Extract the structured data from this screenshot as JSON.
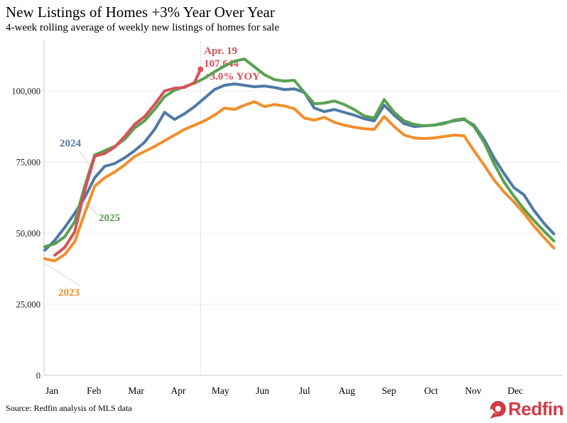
{
  "header": {
    "title": "New Listings of Homes +3% Year Over Year",
    "subtitle": "4-week rolling average of weekly new listings of homes for sale"
  },
  "annotation": {
    "date": "Apr. 19",
    "value": "107,644",
    "yoy": "+3.0% YOY"
  },
  "footer": {
    "source": "Source: Redfin analysis of MLS data",
    "logo_text": "Redfin",
    "logo_color": "#d13b45"
  },
  "chart_data": {
    "type": "line",
    "title": "New Listings of Homes +3% Year Over Year",
    "subtitle": "4-week rolling average of weekly new listings of homes for sale",
    "xlabel": "",
    "ylabel": "",
    "ylim": [
      0,
      115000
    ],
    "grid": "horizontal",
    "x_ticks": [
      "Jan",
      "Feb",
      "Mar",
      "Apr",
      "May",
      "Jun",
      "Jul",
      "Aug",
      "Sep",
      "Oct",
      "Nov",
      "Dec"
    ],
    "y_ticks": [
      {
        "value": 0,
        "label": "0"
      },
      {
        "value": 25000,
        "label": "25,000"
      },
      {
        "value": 50000,
        "label": "50,000"
      },
      {
        "value": 75000,
        "label": "75,000"
      },
      {
        "value": 100000,
        "label": "100,000"
      }
    ],
    "series": [
      {
        "name": "2023",
        "color": "#f28e2b",
        "start_week": 1,
        "values": [
          41000,
          40250,
          42500,
          47000,
          57000,
          66500,
          69500,
          71500,
          74000,
          77000,
          78750,
          80500,
          82500,
          84500,
          86500,
          88000,
          89500,
          91500,
          94000,
          93500,
          95000,
          96250,
          94500,
          95250,
          94750,
          93750,
          90500,
          89750,
          90750,
          89000,
          88000,
          87250,
          86750,
          86500,
          91000,
          87500,
          84500,
          83500,
          83250,
          83500,
          84000,
          84500,
          84250,
          79000,
          74000,
          68750,
          64500,
          61000,
          57000,
          52500,
          48500,
          44750
        ]
      },
      {
        "name": "2024",
        "color": "#4e79a7",
        "start_week": 1,
        "values": [
          44000,
          47500,
          52000,
          57000,
          62500,
          69500,
          73500,
          74500,
          76500,
          79000,
          82000,
          86500,
          92500,
          90000,
          92000,
          94500,
          97500,
          100500,
          102000,
          102500,
          102000,
          101500,
          101750,
          101250,
          100500,
          100750,
          99500,
          94000,
          92750,
          93500,
          92500,
          91500,
          90250,
          89500,
          95000,
          91500,
          88500,
          87500,
          87750,
          88000,
          88750,
          89500,
          90000,
          88000,
          83000,
          76500,
          71000,
          66000,
          63500,
          58000,
          53500,
          49750
        ]
      },
      {
        "name": "2025",
        "color": "#59a14f",
        "start_week": 1,
        "values": [
          45250,
          46250,
          48750,
          54000,
          66500,
          77500,
          79000,
          80500,
          83000,
          87000,
          89500,
          93500,
          98000,
          100250,
          101500,
          102750,
          104500,
          106750,
          108750,
          110500,
          111250,
          108500,
          105750,
          104000,
          103500,
          103750,
          99500,
          95500,
          95750,
          96500,
          95250,
          93500,
          91250,
          90500,
          97000,
          92500,
          89500,
          88250,
          87750,
          88000,
          88500,
          89750,
          90250,
          87500,
          82000,
          74500,
          68000,
          63000,
          58500,
          54500,
          50750,
          47250
        ]
      },
      {
        "name": "",
        "color": "#d9515a",
        "start_week": 2,
        "values": [
          42250,
          45000,
          50500,
          65000,
          77000,
          78000,
          80250,
          84000,
          88250,
          91000,
          95250,
          100000,
          101000,
          101250,
          103000
        ],
        "tip": {
          "week": 16.6,
          "value": 107644
        }
      }
    ]
  }
}
